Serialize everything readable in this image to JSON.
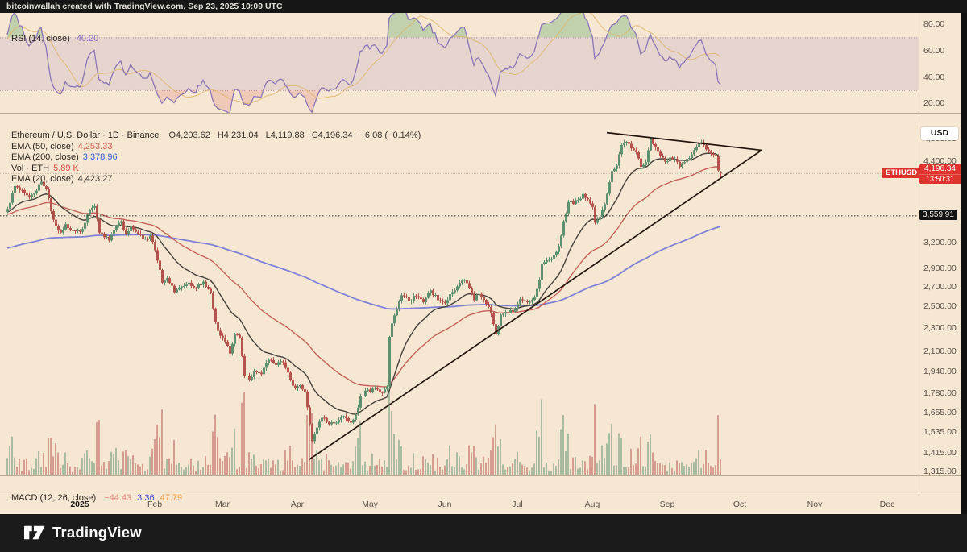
{
  "topbar": {
    "attribution": "bitcoinwallah created with TradingView.com, Sep 23, 2025 10:09 UTC"
  },
  "rsi_pane": {
    "legend_title": "RSI (14, close)",
    "legend_value": "40.20",
    "legend_value_color": "#8e6fc0",
    "ticks": [
      {
        "label": "80.00",
        "value": 80
      },
      {
        "label": "60.00",
        "value": 60
      },
      {
        "label": "40.00",
        "value": 40
      },
      {
        "label": "20.00",
        "value": 20
      }
    ],
    "band": [
      30,
      70
    ]
  },
  "main_pane": {
    "legend_symbol": "Ethereum / U.S. Dollar · 1D · Binance",
    "legend_ohlc": [
      {
        "text": "O4,203.62"
      },
      {
        "text": "H4,231.04"
      },
      {
        "text": "L4,119.88"
      },
      {
        "text": "C4,196.34"
      },
      {
        "text": "−6.08 (−0.14%)"
      }
    ],
    "indicator_rows": [
      {
        "title": "EMA (50, close)",
        "value": "4,253.33",
        "color": "#cf5f52"
      },
      {
        "title": "EMA (200, close)",
        "value": "3,378.96",
        "color": "#2f5bd7"
      },
      {
        "title": "Vol · ETH",
        "value": "5.89 K",
        "color": "#de4a3f"
      },
      {
        "title": "EMA (20, close)",
        "value": "4,423.27",
        "color": "#3a352e"
      }
    ],
    "currency_button": "USD",
    "symbol_badge": "ETHUSD",
    "last_price_label": "4,196.34",
    "countdown": "13:50:31",
    "hline_label": "3,559.91",
    "price_ticks": [
      {
        "label": "4,800.00",
        "value": 4800
      },
      {
        "label": "4,400.00",
        "value": 4400
      },
      {
        "label": "3,200.00",
        "value": 3200
      },
      {
        "label": "2,900.00",
        "value": 2900
      },
      {
        "label": "2,700.00",
        "value": 2700
      },
      {
        "label": "2,500.00",
        "value": 2500
      },
      {
        "label": "2,300.00",
        "value": 2300
      },
      {
        "label": "2,100.00",
        "value": 2100
      },
      {
        "label": "1,940.00",
        "value": 1940
      },
      {
        "label": "1,780.00",
        "value": 1780
      },
      {
        "label": "1,655.00",
        "value": 1655
      },
      {
        "label": "1,535.00",
        "value": 1535
      },
      {
        "label": "1,415.00",
        "value": 1415
      },
      {
        "label": "1,315.00",
        "value": 1315
      }
    ]
  },
  "macd_pane": {
    "legend_title": "MACD (12, 26, close)",
    "values": [
      {
        "text": "−44.43",
        "color": "#e2837a"
      },
      {
        "text": "3.36",
        "color": "#3f55c8"
      },
      {
        "text": "47.79",
        "color": "#ef9a3d"
      }
    ]
  },
  "time_axis": {
    "labels": [
      {
        "label": "2025",
        "day": 0,
        "bold": true
      },
      {
        "label": "Feb",
        "day": 31
      },
      {
        "label": "Mar",
        "day": 59
      },
      {
        "label": "Apr",
        "day": 90
      },
      {
        "label": "May",
        "day": 120
      },
      {
        "label": "Jun",
        "day": 151
      },
      {
        "label": "Jul",
        "day": 181
      },
      {
        "label": "Aug",
        "day": 212
      },
      {
        "label": "Sep",
        "day": 243
      },
      {
        "label": "Oct",
        "day": 273
      },
      {
        "label": "Nov",
        "day": 304
      },
      {
        "label": "Dec",
        "day": 334
      }
    ]
  },
  "footer": {
    "brand": "TradingView"
  },
  "colors": {
    "chart_bg": "#f6e7d3",
    "up": "#5e9070",
    "down": "#b3534c",
    "ema20": "#45413a",
    "ema50": "#c4625a",
    "ema200": "#7f82d8",
    "rsi_line": "#8a76b5",
    "rsi_ma": "#dfb25f",
    "trendline": "#20130a",
    "accent_red": "#df342d",
    "separator": "#b7a893"
  },
  "chart_data": {
    "type": "candlestick",
    "title": "Ethereum / U.S. Dollar",
    "symbol": "ETHUSD",
    "exchange": "Binance",
    "timeframe": "1D",
    "y_scale": "log",
    "day0_date": "2025-01-01",
    "visible_day_range": [
      -30,
      347
    ],
    "data_day_range": [
      -30,
      265
    ],
    "last_candle": {
      "open": 4203.62,
      "high": 4231.04,
      "low": 4119.88,
      "close": 4196.34,
      "change": -6.08,
      "change_pct": -0.14
    },
    "indicators": {
      "rsi": {
        "period": 14,
        "last": 40.2,
        "band": [
          30,
          70
        ],
        "axis_ticks": [
          80,
          60,
          40,
          20
        ]
      },
      "ema20": {
        "period": 20,
        "last": 4423.27
      },
      "ema50": {
        "period": 50,
        "last": 4253.33
      },
      "ema200": {
        "period": 200,
        "last": 3378.96
      },
      "volume": {
        "last_k": 5.89
      },
      "macd": {
        "fast": 12,
        "slow": 26,
        "source": "close",
        "histogram": -44.43,
        "macd": 3.36,
        "signal": 47.79
      }
    },
    "horizontal_line_price": 3559.91,
    "current_price_line": 4196.34,
    "trendlines": [
      {
        "from": {
          "day": 95,
          "price": 1378
        },
        "to": {
          "day": 282,
          "price": 4588
        }
      },
      {
        "from": {
          "day": 218,
          "price": 4912
        },
        "to": {
          "day": 282,
          "price": 4588
        }
      }
    ],
    "ema_init": {
      "ema20": 3600,
      "ema50": 3550,
      "ema200": 3050
    },
    "close_waypoints": [
      [
        -46,
        3520
      ],
      [
        -42,
        3620
      ],
      [
        -38,
        3580
      ],
      [
        -34,
        3640
      ],
      [
        -32,
        3600
      ],
      [
        -30,
        3650
      ],
      [
        -27,
        3990
      ],
      [
        -24,
        3930
      ],
      [
        -21,
        3830
      ],
      [
        -18,
        3920
      ],
      [
        -16,
        4060
      ],
      [
        -14,
        3950
      ],
      [
        -12,
        3620
      ],
      [
        -10,
        3420
      ],
      [
        -8,
        3330
      ],
      [
        -6,
        3440
      ],
      [
        -4,
        3360
      ],
      [
        -2,
        3350
      ],
      [
        0,
        3340
      ],
      [
        2,
        3460
      ],
      [
        4,
        3640
      ],
      [
        6,
        3690
      ],
      [
        8,
        3330
      ],
      [
        10,
        3270
      ],
      [
        12,
        3230
      ],
      [
        14,
        3360
      ],
      [
        17,
        3480
      ],
      [
        19,
        3310
      ],
      [
        21,
        3420
      ],
      [
        23,
        3340
      ],
      [
        25,
        3300
      ],
      [
        27,
        3250
      ],
      [
        29,
        3290
      ],
      [
        31,
        3110
      ],
      [
        33,
        2880
      ],
      [
        34,
        2740
      ],
      [
        36,
        2790
      ],
      [
        39,
        2640
      ],
      [
        42,
        2700
      ],
      [
        45,
        2740
      ],
      [
        48,
        2680
      ],
      [
        51,
        2750
      ],
      [
        54,
        2630
      ],
      [
        56,
        2350
      ],
      [
        58,
        2230
      ],
      [
        60,
        2180
      ],
      [
        62,
        2080
      ],
      [
        64,
        2240
      ],
      [
        66,
        2210
      ],
      [
        68,
        1910
      ],
      [
        70,
        1880
      ],
      [
        72,
        1940
      ],
      [
        75,
        1920
      ],
      [
        78,
        2030
      ],
      [
        81,
        1990
      ],
      [
        84,
        2010
      ],
      [
        87,
        1880
      ],
      [
        89,
        1820
      ],
      [
        91,
        1840
      ],
      [
        93,
        1790
      ],
      [
        95,
        1580
      ],
      [
        96,
        1480
      ],
      [
        98,
        1560
      ],
      [
        100,
        1620
      ],
      [
        103,
        1580
      ],
      [
        106,
        1590
      ],
      [
        109,
        1630
      ],
      [
        112,
        1590
      ],
      [
        114,
        1640
      ],
      [
        116,
        1760
      ],
      [
        118,
        1800
      ],
      [
        120,
        1790
      ],
      [
        122,
        1820
      ],
      [
        124,
        1790
      ],
      [
        126,
        1810
      ],
      [
        127,
        1830
      ],
      [
        128,
        2220
      ],
      [
        129,
        2340
      ],
      [
        131,
        2480
      ],
      [
        133,
        2610
      ],
      [
        136,
        2550
      ],
      [
        139,
        2600
      ],
      [
        142,
        2540
      ],
      [
        145,
        2660
      ],
      [
        148,
        2560
      ],
      [
        151,
        2530
      ],
      [
        153,
        2620
      ],
      [
        156,
        2700
      ],
      [
        159,
        2770
      ],
      [
        161,
        2680
      ],
      [
        163,
        2560
      ],
      [
        165,
        2620
      ],
      [
        168,
        2520
      ],
      [
        170,
        2430
      ],
      [
        172,
        2240
      ],
      [
        174,
        2420
      ],
      [
        177,
        2440
      ],
      [
        180,
        2470
      ],
      [
        182,
        2570
      ],
      [
        185,
        2540
      ],
      [
        188,
        2590
      ],
      [
        190,
        2770
      ],
      [
        191,
        2950
      ],
      [
        193,
        2990
      ],
      [
        196,
        3050
      ],
      [
        198,
        3160
      ],
      [
        200,
        3480
      ],
      [
        202,
        3750
      ],
      [
        204,
        3720
      ],
      [
        206,
        3780
      ],
      [
        208,
        3870
      ],
      [
        210,
        3790
      ],
      [
        212,
        3680
      ],
      [
        213,
        3460
      ],
      [
        215,
        3540
      ],
      [
        217,
        3720
      ],
      [
        219,
        4050
      ],
      [
        220,
        4230
      ],
      [
        222,
        4320
      ],
      [
        224,
        4680
      ],
      [
        226,
        4740
      ],
      [
        228,
        4620
      ],
      [
        230,
        4550
      ],
      [
        232,
        4300
      ],
      [
        234,
        4380
      ],
      [
        236,
        4790
      ],
      [
        238,
        4640
      ],
      [
        240,
        4480
      ],
      [
        242,
        4390
      ],
      [
        244,
        4460
      ],
      [
        246,
        4430
      ],
      [
        248,
        4300
      ],
      [
        250,
        4380
      ],
      [
        252,
        4450
      ],
      [
        254,
        4590
      ],
      [
        256,
        4720
      ],
      [
        258,
        4680
      ],
      [
        260,
        4560
      ],
      [
        262,
        4510
      ],
      [
        263,
        4480
      ],
      [
        264,
        4240
      ],
      [
        265,
        4196.34
      ]
    ]
  }
}
